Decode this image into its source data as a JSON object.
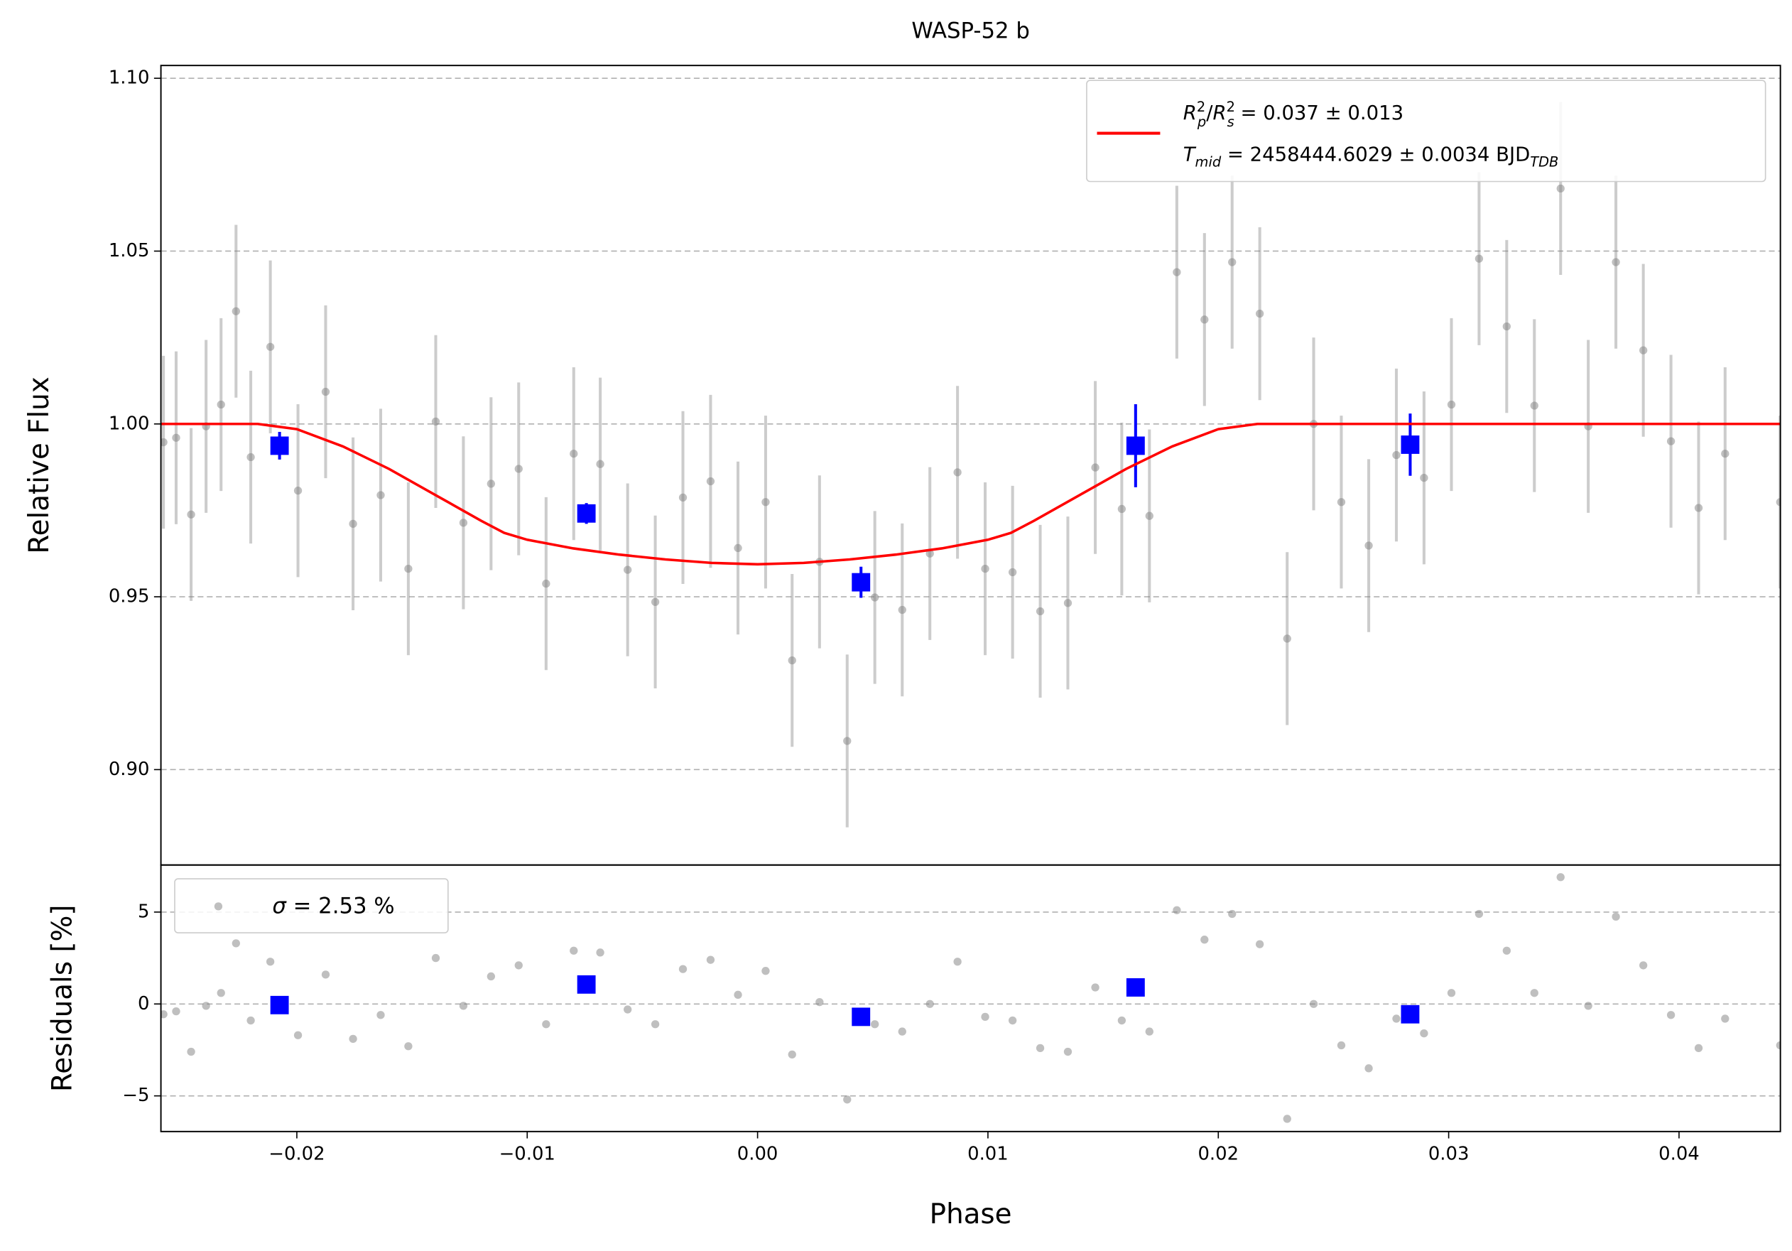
{
  "chart_data": [
    {
      "type": "errorbar",
      "title": "WASP-52 b",
      "ylabel": "Relative Flux",
      "xlim": [
        -0.0259,
        0.0444
      ],
      "ylim": [
        0.8724,
        1.1037
      ],
      "yticks": [
        {
          "value": 0.9,
          "label": "0.90"
        },
        0.95,
        {
          "value": 1.0,
          "label": "1.00"
        },
        1.05,
        {
          "value": 1.1,
          "label": "1.10"
        }
      ],
      "grid": true,
      "legend_parts": [
        [
          "R",
          "p",
          "2",
          "/",
          "R",
          "s",
          "2",
          " = 0.037 ± 0.013"
        ],
        [
          "T",
          "mid",
          " = 2458444.6029 ± 0.0034 BJD",
          "TDB"
        ]
      ],
      "legend": "upper right",
      "series": [
        {
          "marker": "o",
          "color": "#808080",
          "x": [
            -0.02579,
            -0.02524,
            -0.02459,
            -0.02394,
            -0.02329,
            -0.02264,
            -0.022,
            -0.02115,
            -0.01995,
            -0.01875,
            -0.01756,
            -0.01636,
            -0.01516,
            -0.01397,
            -0.01277,
            -0.01157,
            -0.01037,
            -0.00918,
            -0.00798,
            -0.00683,
            -0.00564,
            -0.00444,
            -0.00324,
            -0.00204,
            -0.00085,
            0.00035,
            0.0015,
            0.00269,
            0.00389,
            0.00509,
            0.00628,
            0.00748,
            0.00868,
            0.00988,
            0.01107,
            0.01227,
            0.01347,
            0.01466,
            0.01581,
            0.01701,
            0.0182,
            0.0194,
            0.0206,
            0.0218,
            0.02299,
            0.02414,
            0.02534,
            0.02653,
            0.02773,
            0.02893,
            0.03012,
            0.03132,
            0.03252,
            0.03372,
            0.03486,
            0.03606,
            0.03726,
            0.03845,
            0.03965,
            0.04085,
            0.042,
            0.04439
          ],
          "values": [
            0.9947,
            0.996,
            0.9738,
            0.9993,
            1.0056,
            1.0326,
            0.9904,
            1.0223,
            0.9807,
            1.0093,
            0.9711,
            0.9794,
            0.9581,
            1.0007,
            0.9714,
            0.9827,
            0.987,
            0.9538,
            0.9914,
            0.9884,
            0.9578,
            0.9485,
            0.9787,
            0.9834,
            0.9641,
            0.9774,
            0.9316,
            0.9601,
            0.9083,
            0.9498,
            0.9462,
            0.9625,
            0.986,
            0.9581,
            0.9571,
            0.9458,
            0.9482,
            0.9874,
            0.9754,
            0.9734,
            1.0439,
            1.0302,
            1.0468,
            1.0319,
            0.9379,
            1.0,
            0.9774,
            0.9648,
            0.991,
            0.9844,
            1.0056,
            1.0478,
            1.0282,
            1.0053,
            1.0681,
            0.9993,
            1.0468,
            1.0213,
            0.995,
            0.9757,
            0.9914,
            0.9774
          ],
          "errors": [
            0.025,
            0.025,
            0.025,
            0.025,
            0.025,
            0.025,
            0.025,
            0.025,
            0.025,
            0.025,
            0.025,
            0.025,
            0.025,
            0.025,
            0.025,
            0.025,
            0.025,
            0.025,
            0.025,
            0.025,
            0.025,
            0.025,
            0.025,
            0.025,
            0.025,
            0.025,
            0.025,
            0.025,
            0.025,
            0.025,
            0.025,
            0.025,
            0.025,
            0.025,
            0.025,
            0.025,
            0.025,
            0.025,
            0.025,
            0.025,
            0.025,
            0.025,
            0.025,
            0.025,
            0.025,
            0.025,
            0.025,
            0.025,
            0.025,
            0.025,
            0.025,
            0.025,
            0.025,
            0.025,
            0.025,
            0.025,
            0.025,
            0.025,
            0.025,
            0.025,
            0.025,
            0.025
          ]
        },
        {
          "marker": "s",
          "color": "#0000ff",
          "x": [
            -0.02075,
            -0.00743,
            0.00449,
            0.01641,
            0.02833
          ],
          "values": [
            0.9937,
            0.9741,
            0.9542,
            0.9937,
            0.994
          ],
          "errors": [
            0.004,
            0.003,
            0.0045,
            0.012,
            0.009
          ]
        },
        {
          "marker": "line",
          "color": "#ff0000",
          "x": [
            -0.0259,
            -0.0217,
            -0.02,
            -0.018,
            -0.016,
            -0.014,
            -0.012,
            -0.011,
            -0.01,
            -0.008,
            -0.006,
            -0.004,
            -0.002,
            0,
            0.002,
            0.004,
            0.006,
            0.008,
            0.01,
            0.011,
            0.012,
            0.014,
            0.016,
            0.018,
            0.02,
            0.0217,
            0.0444
          ],
          "values": [
            1.0,
            1.0,
            0.9985,
            0.9935,
            0.987,
            0.9795,
            0.972,
            0.9685,
            0.9665,
            0.964,
            0.9622,
            0.9608,
            0.9598,
            0.9594,
            0.9598,
            0.9608,
            0.9622,
            0.964,
            0.9665,
            0.9685,
            0.972,
            0.9795,
            0.987,
            0.9935,
            0.9985,
            1.0,
            1.0
          ]
        }
      ]
    },
    {
      "type": "scatter",
      "ylabel": "Residuals [%]",
      "xlabel": "Phase",
      "xlim": [
        -0.0259,
        0.0444
      ],
      "ylim": [
        -6.94,
        7.56
      ],
      "xticks": [
        {
          "value": -0.02,
          "label": "−0.02"
        },
        {
          "value": -0.01,
          "label": "−0.01"
        },
        {
          "value": 0,
          "label": "0.00"
        },
        0.01,
        0.02,
        0.03,
        0.04
      ],
      "yticks": [
        {
          "value": -5,
          "label": "−5"
        },
        0,
        5
      ],
      "grid": true,
      "legend_parts": [
        "σ",
        " = 2.53 %"
      ],
      "legend": "upper left",
      "series": [
        {
          "marker": "o",
          "color": "#808080",
          "x": [
            -0.02579,
            -0.02524,
            -0.02459,
            -0.02394,
            -0.02329,
            -0.02264,
            -0.022,
            -0.02115,
            -0.01995,
            -0.01875,
            -0.01756,
            -0.01636,
            -0.01516,
            -0.01397,
            -0.01277,
            -0.01157,
            -0.01037,
            -0.00918,
            -0.00798,
            -0.00683,
            -0.00564,
            -0.00444,
            -0.00324,
            -0.00204,
            -0.00085,
            0.00035,
            0.0015,
            0.00269,
            0.00389,
            0.00509,
            0.00628,
            0.00748,
            0.00868,
            0.00988,
            0.01107,
            0.01227,
            0.01347,
            0.01466,
            0.01581,
            0.01701,
            0.0182,
            0.0194,
            0.0206,
            0.0218,
            0.02299,
            0.02414,
            0.02534,
            0.02653,
            0.02773,
            0.02893,
            0.03012,
            0.03132,
            0.03252,
            0.03372,
            0.03486,
            0.03606,
            0.03726,
            0.03845,
            0.03965,
            0.04085,
            0.042,
            0.04439
          ],
          "values": [
            -0.56,
            -0.4,
            -2.6,
            -0.1,
            0.6,
            3.3,
            -0.9,
            2.3,
            -1.7,
            1.6,
            -1.9,
            -0.6,
            -2.3,
            2.5,
            -0.1,
            1.5,
            2.1,
            -1.1,
            2.9,
            2.8,
            -0.3,
            -1.1,
            1.9,
            2.4,
            0.5,
            1.8,
            -2.75,
            0.1,
            -5.2,
            -1.1,
            -1.5,
            0,
            2.3,
            -0.7,
            -0.9,
            -2.4,
            -2.6,
            0.9,
            -0.9,
            -1.5,
            5.1,
            3.5,
            4.9,
            3.25,
            -6.25,
            0,
            -2.25,
            -3.5,
            -0.8,
            -1.6,
            0.6,
            4.9,
            2.9,
            0.6,
            6.9,
            -0.1,
            4.75,
            2.1,
            -0.6,
            -2.4,
            -0.8,
            -2.25
          ]
        },
        {
          "marker": "s",
          "color": "#0000ff",
          "x": [
            -0.02075,
            -0.00743,
            0.00449,
            0.01641,
            0.02833
          ],
          "values": [
            -0.06,
            1.06,
            -0.7,
            0.9,
            -0.56
          ]
        }
      ]
    }
  ]
}
